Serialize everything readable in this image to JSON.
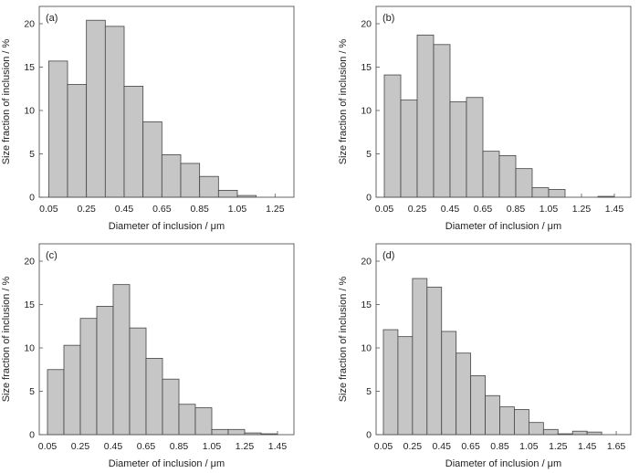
{
  "chart_data": [
    {
      "type": "bar",
      "panel_label": "(a)",
      "xlabel": "Diameter of inclusion / μm",
      "ylabel": "Size fraction of inclusion / %",
      "ylim": [
        0,
        22
      ],
      "yticks": [
        "0",
        "5",
        "10",
        "15",
        "20"
      ],
      "xlim": [
        0.0,
        1.35
      ],
      "xticks": [
        "0.05",
        "0.25",
        "0.45",
        "0.65",
        "0.85",
        "1.05",
        "1.25"
      ],
      "bin_width": 0.1,
      "bin_start": 0.05,
      "values": [
        15.7,
        13.0,
        20.4,
        19.7,
        12.8,
        8.7,
        4.9,
        3.9,
        2.4,
        0.8,
        0.2
      ]
    },
    {
      "type": "bar",
      "panel_label": "(b)",
      "xlabel": "Diameter of inclusion / μm",
      "ylabel": "Size fraction of inclusion / %",
      "ylim": [
        0,
        22
      ],
      "yticks": [
        "0",
        "5",
        "10",
        "15",
        "20"
      ],
      "xlim": [
        0.0,
        1.55
      ],
      "xticks": [
        "0.05",
        "0.25",
        "0.45",
        "0.65",
        "0.85",
        "1.05",
        "1.25",
        "1.45"
      ],
      "bin_width": 0.1,
      "bin_start": 0.05,
      "values": [
        14.1,
        11.2,
        18.7,
        17.6,
        11.0,
        11.5,
        5.3,
        4.8,
        3.3,
        1.1,
        0.9,
        0,
        0,
        0.1
      ]
    },
    {
      "type": "bar",
      "panel_label": "(c)",
      "xlabel": "Diameter of inclusion / μm",
      "ylabel": "Size fraction of inclusion / %",
      "ylim": [
        0,
        22
      ],
      "yticks": [
        "0",
        "5",
        "10",
        "15",
        "20"
      ],
      "xlim": [
        0.0,
        1.55
      ],
      "xticks": [
        "0.05",
        "0.25",
        "0.45",
        "0.65",
        "0.85",
        "1.05",
        "1.25",
        "1.45"
      ],
      "bin_width": 0.1,
      "bin_start": 0.05,
      "values": [
        7.5,
        10.3,
        13.4,
        14.8,
        17.3,
        12.3,
        8.8,
        6.4,
        3.5,
        3.1,
        0.6,
        0.6,
        0.2,
        0.1
      ]
    },
    {
      "type": "bar",
      "panel_label": "(d)",
      "xlabel": "Diameter of inclusion / μm",
      "ylabel": "Size fraction of inclusion / %",
      "ylim": [
        0,
        22
      ],
      "yticks": [
        "0",
        "5",
        "10",
        "15",
        "20"
      ],
      "xlim": [
        0.0,
        1.75
      ],
      "xticks": [
        "0.05",
        "0.25",
        "0.45",
        "0.65",
        "0.85",
        "1.05",
        "1.25",
        "1.45",
        "1.65"
      ],
      "bin_width": 0.1,
      "bin_start": 0.05,
      "values": [
        12.1,
        11.3,
        18.0,
        17.0,
        11.9,
        9.4,
        6.8,
        4.5,
        3.2,
        2.9,
        1.4,
        0.6,
        0.1,
        0.4,
        0.3
      ]
    }
  ]
}
